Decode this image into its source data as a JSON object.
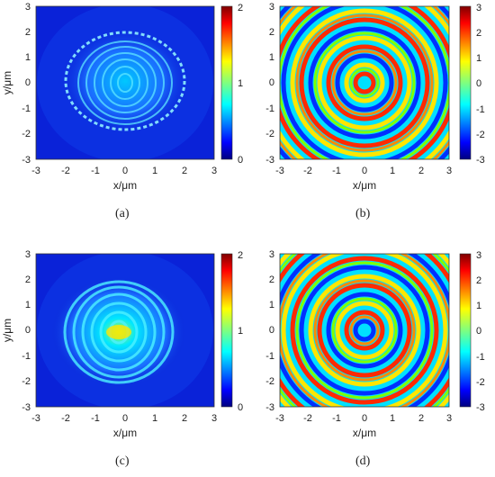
{
  "figure": {
    "panels": [
      {
        "id": "a",
        "caption": "(a)",
        "kind": "amplitude",
        "x_axis": {
          "label": "x/μm",
          "ticks": [
            "-3",
            "-2",
            "-1",
            "0",
            "1",
            "2",
            "3"
          ]
        },
        "y_axis": {
          "label": "y/μm",
          "ticks": [
            "3",
            "2",
            "1",
            "0",
            "-1",
            "-2",
            "-3"
          ]
        },
        "colorbar": {
          "ticks": [
            "2",
            "1",
            "0"
          ],
          "range": [
            0,
            2
          ]
        }
      },
      {
        "id": "b",
        "caption": "(b)",
        "kind": "phase",
        "x_axis": {
          "label": "x/μm",
          "ticks": [
            "-3",
            "-2",
            "-1",
            "0",
            "1",
            "2",
            "3"
          ]
        },
        "y_axis": {
          "label": "",
          "ticks": [
            "3",
            "2",
            "1",
            "0",
            "-1",
            "-2",
            "-3"
          ]
        },
        "colorbar": {
          "ticks": [
            "3",
            "2",
            "1",
            "0",
            "-1",
            "-2",
            "-3"
          ],
          "range": [
            -3,
            3
          ]
        }
      },
      {
        "id": "c",
        "caption": "(c)",
        "kind": "amplitude",
        "x_axis": {
          "label": "x/μm",
          "ticks": [
            "-3",
            "-2",
            "-1",
            "0",
            "1",
            "2",
            "3"
          ]
        },
        "y_axis": {
          "label": "y/μm",
          "ticks": [
            "3",
            "2",
            "1",
            "0",
            "-1",
            "-2",
            "-3"
          ]
        },
        "colorbar": {
          "ticks": [
            "2",
            "1",
            "0"
          ],
          "range": [
            0,
            2
          ]
        }
      },
      {
        "id": "d",
        "caption": "(d)",
        "kind": "phase",
        "x_axis": {
          "label": "x/μm",
          "ticks": [
            "-3",
            "-2",
            "-1",
            "0",
            "1",
            "2",
            "3"
          ]
        },
        "y_axis": {
          "label": "",
          "ticks": [
            "3",
            "2",
            "1",
            "0",
            "-1",
            "-2",
            "-3"
          ]
        },
        "colorbar": {
          "ticks": [
            "3",
            "2",
            "1",
            "0",
            "-1",
            "-2",
            "-3"
          ],
          "range": [
            -3,
            3
          ]
        }
      }
    ],
    "colormap": "jet"
  }
}
